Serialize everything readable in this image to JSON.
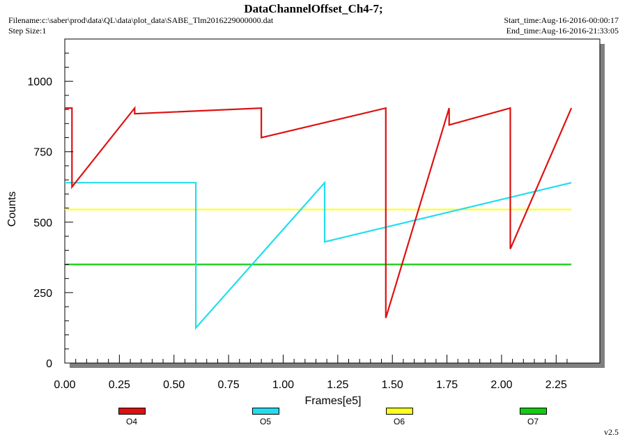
{
  "header": {
    "title": "DataChannelOffset_Ch4-7;",
    "filename": "Filename:c:\\saber\\prod\\data\\QL\\data\\plot_data\\SABE_Tlm2016229000000.dat",
    "step_size": "Step Size:1",
    "start_time": "Start_time:Aug-16-2016-00:00:17",
    "end_time": "End_time:Aug-16-2016-21:33:05"
  },
  "footer": {
    "version": "v2.5"
  },
  "chart_data": {
    "type": "line",
    "title": "DataChannelOffset_Ch4-7;",
    "xlabel": "Frames[e5]",
    "ylabel": "Counts",
    "xlim": [
      0,
      2.45
    ],
    "ylim": [
      0,
      1150
    ],
    "x_ticks": [
      "0.00",
      "0.25",
      "0.50",
      "0.75",
      "1.00",
      "1.25",
      "1.50",
      "1.75",
      "2.00",
      "2.25"
    ],
    "x_tick_values": [
      0,
      0.25,
      0.5,
      0.75,
      1.0,
      1.25,
      1.5,
      1.75,
      2.0,
      2.25
    ],
    "y_ticks": [
      "0",
      "250",
      "500",
      "750",
      "1000"
    ],
    "y_tick_values": [
      0,
      250,
      500,
      750,
      1000
    ],
    "grid": false,
    "legend_position": "bottom",
    "series": [
      {
        "name": "O4",
        "color": "#dd1111",
        "baseline": 905,
        "x": [
          0,
          0.033,
          0.033,
          0.32,
          0.32,
          0.9,
          0.9,
          1.47,
          1.47,
          1.76,
          1.76,
          2.04,
          2.04,
          2.32
        ],
        "y": [
          905,
          905,
          625,
          905,
          885,
          905,
          800,
          905,
          160,
          905,
          845,
          905,
          405,
          905
        ]
      },
      {
        "name": "O5",
        "color": "#22ddee",
        "baseline": 640,
        "x": [
          0,
          0.6,
          0.6,
          1.19,
          1.19,
          2.32
        ],
        "y": [
          640,
          640,
          125,
          640,
          430,
          640
        ]
      },
      {
        "name": "O6",
        "color": "#ffff22",
        "baseline": 545,
        "x": [
          0,
          2.32
        ],
        "y": [
          545,
          545
        ]
      },
      {
        "name": "O7",
        "color": "#11cc11",
        "baseline": 350,
        "x": [
          0,
          2.32
        ],
        "y": [
          350,
          350
        ]
      }
    ]
  }
}
